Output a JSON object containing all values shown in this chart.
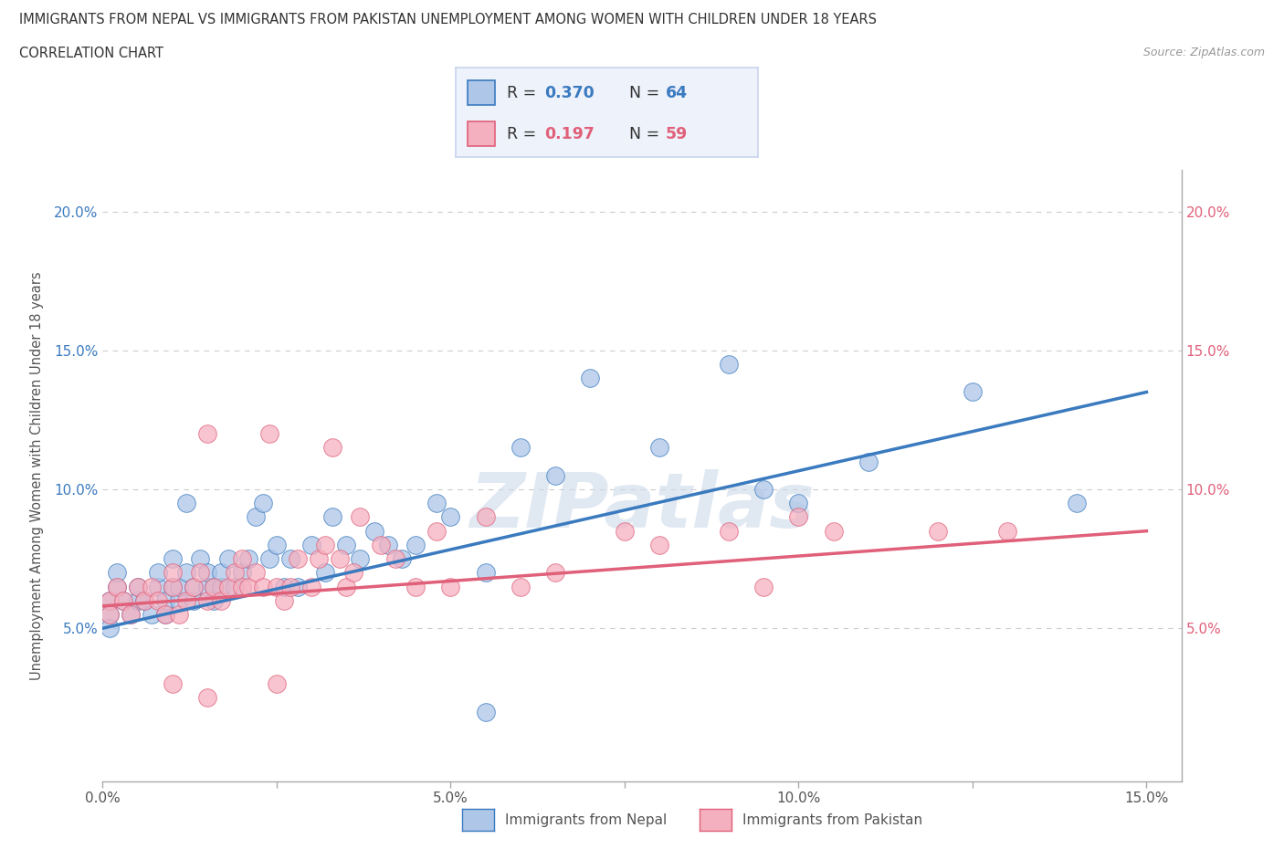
{
  "title_line1": "IMMIGRANTS FROM NEPAL VS IMMIGRANTS FROM PAKISTAN UNEMPLOYMENT AMONG WOMEN WITH CHILDREN UNDER 18 YEARS",
  "title_line2": "CORRELATION CHART",
  "source_text": "Source: ZipAtlas.com",
  "ylabel": "Unemployment Among Women with Children Under 18 years",
  "xlim": [
    0.0,
    0.155
  ],
  "ylim": [
    -0.005,
    0.215
  ],
  "xticks": [
    0.0,
    0.025,
    0.05,
    0.075,
    0.1,
    0.125,
    0.15
  ],
  "xticklabels": [
    "0.0%",
    "",
    "5.0%",
    "",
    "10.0%",
    "",
    "15.0%"
  ],
  "yticks": [
    0.0,
    0.05,
    0.1,
    0.15,
    0.2
  ],
  "yticklabels_left": [
    "",
    "5.0%",
    "10.0%",
    "15.0%",
    "20.0%"
  ],
  "yticklabels_right": [
    "",
    "5.0%",
    "10.0%",
    "15.0%",
    "20.0%"
  ],
  "nepal_color": "#aec6e8",
  "pakistan_color": "#f5b0c0",
  "nepal_line_color": "#3a7abf",
  "pakistan_line_color": "#e0607a",
  "nepal_R": 0.37,
  "nepal_N": 64,
  "pakistan_R": 0.197,
  "pakistan_N": 59,
  "nepal_scatter_x": [
    0.001,
    0.001,
    0.001,
    0.002,
    0.002,
    0.003,
    0.004,
    0.005,
    0.005,
    0.006,
    0.007,
    0.008,
    0.008,
    0.009,
    0.009,
    0.01,
    0.01,
    0.011,
    0.011,
    0.012,
    0.012,
    0.013,
    0.013,
    0.014,
    0.015,
    0.015,
    0.016,
    0.016,
    0.017,
    0.017,
    0.018,
    0.019,
    0.02,
    0.021,
    0.022,
    0.023,
    0.024,
    0.025,
    0.026,
    0.027,
    0.028,
    0.03,
    0.032,
    0.033,
    0.035,
    0.037,
    0.039,
    0.041,
    0.043,
    0.045,
    0.048,
    0.05,
    0.055,
    0.06,
    0.065,
    0.07,
    0.08,
    0.09,
    0.095,
    0.1,
    0.11,
    0.125,
    0.14,
    0.055
  ],
  "nepal_scatter_y": [
    0.06,
    0.055,
    0.05,
    0.065,
    0.07,
    0.06,
    0.055,
    0.06,
    0.065,
    0.06,
    0.055,
    0.065,
    0.07,
    0.055,
    0.06,
    0.065,
    0.075,
    0.06,
    0.065,
    0.07,
    0.095,
    0.06,
    0.065,
    0.075,
    0.065,
    0.07,
    0.06,
    0.065,
    0.065,
    0.07,
    0.075,
    0.065,
    0.07,
    0.075,
    0.09,
    0.095,
    0.075,
    0.08,
    0.065,
    0.075,
    0.065,
    0.08,
    0.07,
    0.09,
    0.08,
    0.075,
    0.085,
    0.08,
    0.075,
    0.08,
    0.095,
    0.09,
    0.07,
    0.115,
    0.105,
    0.14,
    0.115,
    0.145,
    0.1,
    0.095,
    0.11,
    0.135,
    0.095,
    0.02
  ],
  "pakistan_scatter_x": [
    0.001,
    0.001,
    0.002,
    0.003,
    0.004,
    0.005,
    0.006,
    0.007,
    0.008,
    0.009,
    0.01,
    0.01,
    0.011,
    0.012,
    0.013,
    0.014,
    0.015,
    0.015,
    0.016,
    0.017,
    0.018,
    0.019,
    0.02,
    0.02,
    0.021,
    0.022,
    0.023,
    0.024,
    0.025,
    0.026,
    0.027,
    0.028,
    0.03,
    0.031,
    0.032,
    0.033,
    0.034,
    0.035,
    0.036,
    0.037,
    0.04,
    0.042,
    0.045,
    0.048,
    0.05,
    0.055,
    0.06,
    0.065,
    0.075,
    0.08,
    0.09,
    0.095,
    0.1,
    0.105,
    0.12,
    0.13,
    0.025,
    0.015,
    0.01
  ],
  "pakistan_scatter_y": [
    0.06,
    0.055,
    0.065,
    0.06,
    0.055,
    0.065,
    0.06,
    0.065,
    0.06,
    0.055,
    0.065,
    0.07,
    0.055,
    0.06,
    0.065,
    0.07,
    0.06,
    0.12,
    0.065,
    0.06,
    0.065,
    0.07,
    0.065,
    0.075,
    0.065,
    0.07,
    0.065,
    0.12,
    0.065,
    0.06,
    0.065,
    0.075,
    0.065,
    0.075,
    0.08,
    0.115,
    0.075,
    0.065,
    0.07,
    0.09,
    0.08,
    0.075,
    0.065,
    0.085,
    0.065,
    0.09,
    0.065,
    0.07,
    0.085,
    0.08,
    0.085,
    0.065,
    0.09,
    0.085,
    0.085,
    0.085,
    0.03,
    0.025,
    0.03
  ],
  "nepal_trend_x": [
    0.0,
    0.15
  ],
  "nepal_trend_y": [
    0.05,
    0.135
  ],
  "pakistan_trend_x": [
    0.0,
    0.15
  ],
  "pakistan_trend_y": [
    0.058,
    0.085
  ],
  "watermark_text": "ZIPatlas",
  "background_color": "#ffffff",
  "grid_color": "#cccccc",
  "legend_box_color": "#eef2fb",
  "legend_border_color": "#c8d4ef"
}
